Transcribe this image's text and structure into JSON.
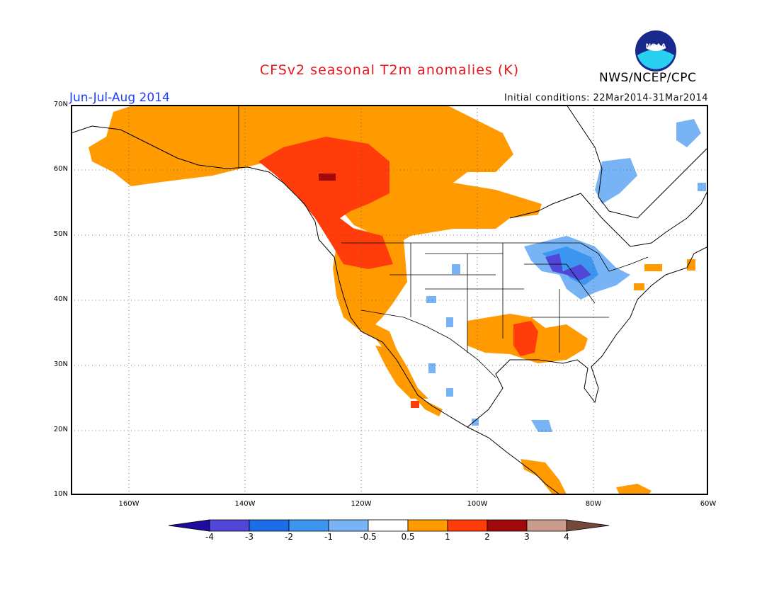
{
  "header": {
    "title": "CFSv2 seasonal T2m anomalies (K)",
    "agency": "NWS/NCEP/CPC",
    "logo_text": "NOAA",
    "period": "Jun-Jul-Aug 2014",
    "initial_conditions": "Initial conditions: 22Mar2014-31Mar2014"
  },
  "map": {
    "region": "North America",
    "lon_range": [
      -172,
      -60
    ],
    "lat_range": [
      10,
      70
    ],
    "lat_ticks": [
      "10N",
      "20N",
      "30N",
      "40N",
      "50N",
      "60N",
      "70N"
    ],
    "lon_ticks": [
      "160W",
      "140W",
      "120W",
      "100W",
      "80W",
      "60W"
    ],
    "gridlines": "dotted"
  },
  "colorbar": {
    "labels": [
      "-4",
      "-3",
      "-2",
      "-1",
      "-0.5",
      "0.5",
      "1",
      "2",
      "3",
      "4"
    ],
    "colors": [
      "#1e0ca0",
      "#5046d8",
      "#1c6ee6",
      "#3c96f0",
      "#78b4f5",
      "#ffffff",
      "#ff9a00",
      "#ff3c0a",
      "#a00a0a",
      "#c89b8c",
      "#74493b"
    ]
  }
}
